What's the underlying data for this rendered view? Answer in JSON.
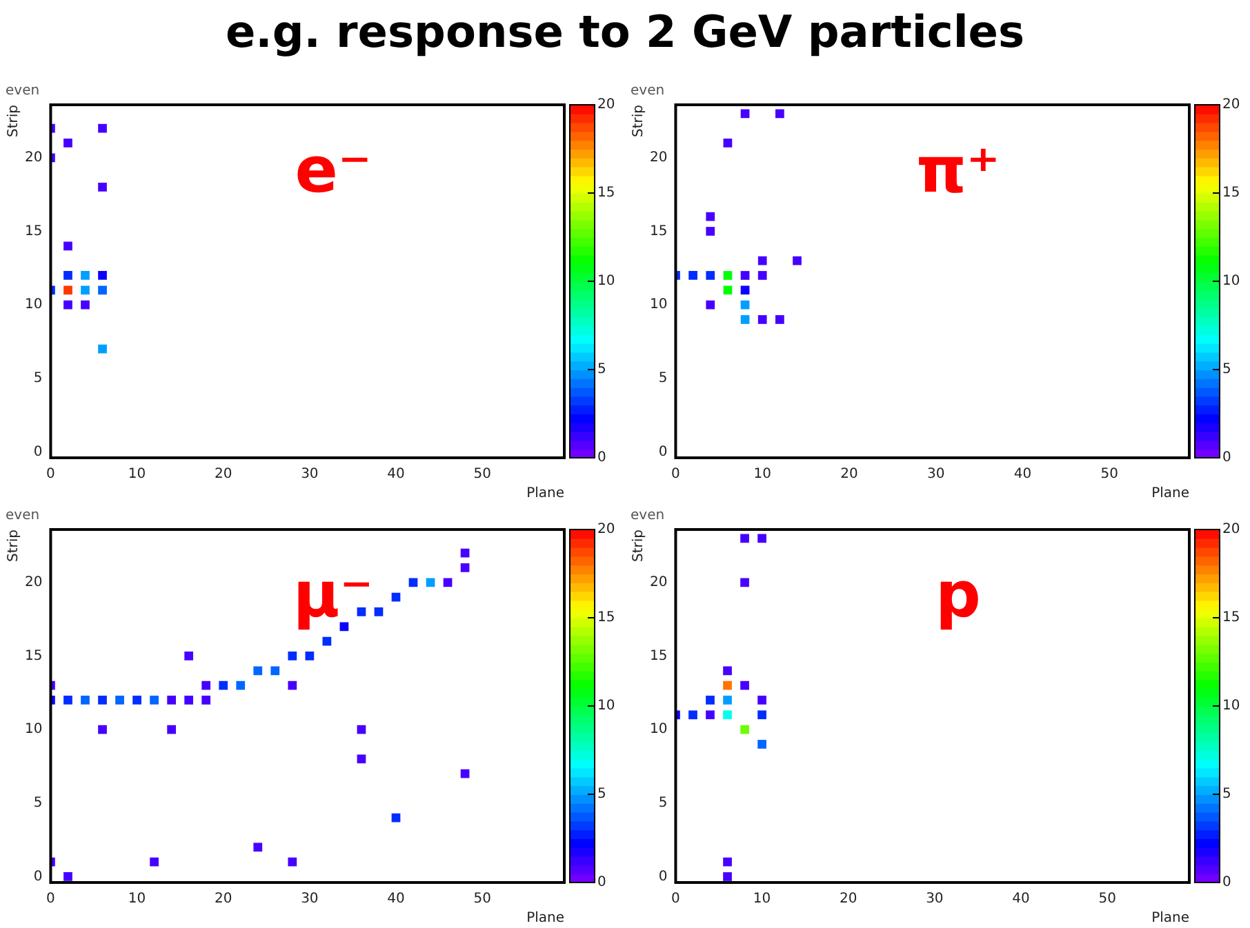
{
  "chart_data": [
    {
      "type": "other",
      "title": "e.g. response to 2 GeV particles"
    },
    {
      "type": "scatter",
      "title": "even",
      "xlabel": "Plane",
      "ylabel": "Strip",
      "annotations": [
        "e⁻"
      ],
      "marker": "square",
      "grid": false,
      "legend": false,
      "xlim": [
        0,
        59.5
      ],
      "xticks": [
        0,
        10,
        20,
        30,
        40,
        50
      ],
      "ylim": [
        -0.4,
        23.6
      ],
      "yticks": [
        0,
        5,
        10,
        15,
        20
      ],
      "clim": [
        0,
        20
      ],
      "cticks": [
        0,
        5,
        10,
        15,
        20
      ],
      "x": [
        0,
        0,
        0,
        2,
        2,
        2,
        2,
        2,
        4,
        4,
        4,
        6,
        6,
        6,
        6,
        6
      ],
      "values": [
        22,
        20,
        11,
        21,
        14,
        12,
        11,
        10,
        12,
        11,
        10,
        22,
        18,
        12,
        11,
        7
      ],
      "cvalues": [
        1,
        1,
        3,
        1,
        1,
        3,
        19,
        1,
        5,
        5,
        1,
        1,
        1,
        2,
        4,
        5
      ]
    },
    {
      "type": "scatter",
      "title": "even",
      "xlabel": "Plane",
      "ylabel": "Strip",
      "annotations": [
        "π⁺"
      ],
      "marker": "square",
      "grid": false,
      "legend": false,
      "xlim": [
        0,
        59.2
      ],
      "xticks": [
        0,
        10,
        20,
        30,
        40,
        50
      ],
      "ylim": [
        -0.4,
        23.6
      ],
      "yticks": [
        0,
        5,
        10,
        15,
        20
      ],
      "clim": [
        0,
        20
      ],
      "cticks": [
        0,
        5,
        10,
        15,
        20
      ],
      "x": [
        0,
        2,
        4,
        4,
        4,
        4,
        6,
        6,
        6,
        8,
        8,
        8,
        8,
        8,
        10,
        10,
        10,
        12,
        12,
        14
      ],
      "values": [
        12,
        12,
        16,
        15,
        12,
        10,
        21,
        12,
        11,
        23,
        12,
        11,
        10,
        9,
        13,
        12,
        9,
        23,
        9,
        13
      ],
      "cvalues": [
        3,
        3,
        1,
        1,
        3,
        1,
        1,
        11,
        11,
        1,
        1,
        2,
        5,
        5,
        1,
        1,
        1,
        1,
        1,
        1
      ]
    },
    {
      "type": "scatter",
      "title": "even",
      "xlabel": "Plane",
      "ylabel": "Strip",
      "annotations": [
        "μ⁻"
      ],
      "marker": "square",
      "grid": false,
      "legend": false,
      "xlim": [
        0,
        59.5
      ],
      "xticks": [
        0,
        10,
        20,
        30,
        40,
        50
      ],
      "ylim": [
        -0.4,
        23.6
      ],
      "yticks": [
        0,
        5,
        10,
        15,
        20
      ],
      "clim": [
        0,
        20
      ],
      "cticks": [
        0,
        5,
        10,
        15,
        20
      ],
      "x": [
        0,
        0,
        0,
        2,
        2,
        4,
        6,
        6,
        8,
        10,
        12,
        12,
        14,
        14,
        16,
        16,
        18,
        18,
        20,
        22,
        24,
        24,
        26,
        28,
        28,
        28,
        30,
        32,
        34,
        36,
        36,
        36,
        38,
        40,
        40,
        42,
        44,
        46,
        48,
        48,
        48
      ],
      "values": [
        13,
        12,
        1,
        12,
        0,
        12,
        12,
        10,
        12,
        12,
        12,
        1,
        12,
        10,
        15,
        12,
        13,
        12,
        13,
        13,
        14,
        2,
        14,
        15,
        13,
        1,
        15,
        16,
        17,
        18,
        10,
        8,
        18,
        19,
        4,
        20,
        20,
        20,
        22,
        21,
        7
      ],
      "cvalues": [
        1,
        2,
        1,
        3,
        1,
        4,
        3,
        1,
        4,
        3,
        4,
        1,
        1,
        1,
        1,
        1,
        1,
        1,
        3,
        4,
        4,
        1,
        4,
        3,
        1,
        1,
        3,
        3,
        2,
        3,
        1,
        1,
        3,
        3,
        3,
        3,
        5,
        1,
        1,
        1,
        1
      ]
    },
    {
      "type": "scatter",
      "title": "even",
      "xlabel": "Plane",
      "ylabel": "Strip",
      "annotations": [
        "p"
      ],
      "marker": "square",
      "grid": false,
      "legend": false,
      "xlim": [
        0,
        59.5
      ],
      "xticks": [
        0,
        10,
        20,
        30,
        40,
        50
      ],
      "ylim": [
        -0.4,
        23.6
      ],
      "yticks": [
        0,
        5,
        10,
        15,
        20
      ],
      "clim": [
        0,
        20
      ],
      "cticks": [
        0,
        5,
        10,
        15,
        20
      ],
      "x": [
        0,
        2,
        4,
        4,
        6,
        6,
        6,
        6,
        6,
        6,
        8,
        8,
        8,
        8,
        10,
        10,
        10,
        10
      ],
      "values": [
        11,
        11,
        12,
        11,
        14,
        13,
        12,
        11,
        1,
        0,
        23,
        20,
        13,
        10,
        23,
        12,
        11,
        9
      ],
      "cvalues": [
        2,
        3,
        3,
        1,
        1,
        18,
        5,
        7,
        1,
        1,
        1,
        1,
        1,
        13,
        1,
        1,
        3,
        4
      ]
    }
  ]
}
